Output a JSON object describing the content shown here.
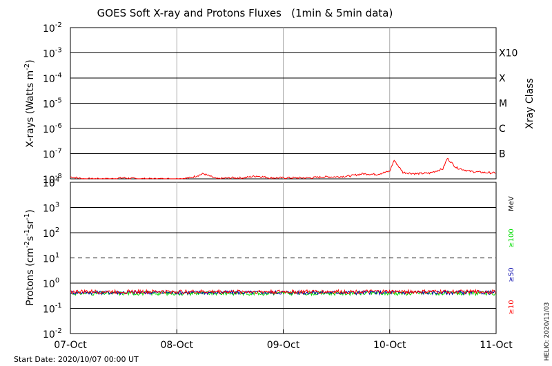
{
  "chart_data": [
    {
      "type": "line",
      "title": "GOES Soft X-ray and Protons Fluxes   (1min & 5min data)",
      "ylabel": "X-rays (Watts m^-2)",
      "ylabel_main": "X-rays (Watts m",
      "ylabel_exp": "-2",
      "ylabel_close": ")",
      "y_scale": "log",
      "ylim": [
        1e-08,
        0.01
      ],
      "y_ticks": [
        {
          "base": "10",
          "exp": "-2"
        },
        {
          "base": "10",
          "exp": "-3"
        },
        {
          "base": "10",
          "exp": "-4"
        },
        {
          "base": "10",
          "exp": "-5"
        },
        {
          "base": "10",
          "exp": "-6"
        },
        {
          "base": "10",
          "exp": "-7"
        },
        {
          "base": "10",
          "exp": "-8"
        }
      ],
      "right_axis_label": "Xray Class",
      "xray_classes": [
        {
          "label": "X10",
          "level": 0.001
        },
        {
          "label": "X",
          "level": 0.0001
        },
        {
          "label": "M",
          "level": 1e-05
        },
        {
          "label": "C",
          "level": 1e-06
        },
        {
          "label": "B",
          "level": 1e-07
        }
      ],
      "x_range_days": [
        "2020-10-07",
        "2020-10-11"
      ],
      "series": [
        {
          "color": "#ff0000",
          "x": [
            "2020-10-07 00:00",
            "2020-10-07 03:00",
            "2020-10-07 06:00",
            "2020-10-07 09:00",
            "2020-10-07 12:00",
            "2020-10-07 15:00",
            "2020-10-07 18:00",
            "2020-10-07 21:00",
            "2020-10-08 00:00",
            "2020-10-08 03:00",
            "2020-10-08 06:00",
            "2020-10-08 09:00",
            "2020-10-08 12:00",
            "2020-10-08 15:00",
            "2020-10-08 18:00",
            "2020-10-08 21:00",
            "2020-10-09 00:00",
            "2020-10-09 03:00",
            "2020-10-09 06:00",
            "2020-10-09 09:00",
            "2020-10-09 12:00",
            "2020-10-09 15:00",
            "2020-10-09 18:00",
            "2020-10-09 21:00",
            "2020-10-10 00:00",
            "2020-10-10 01:00",
            "2020-10-10 03:00",
            "2020-10-10 06:00",
            "2020-10-10 09:00",
            "2020-10-10 12:00",
            "2020-10-10 13:00",
            "2020-10-10 15:00",
            "2020-10-10 18:00",
            "2020-10-10 21:00",
            "2020-10-11 00:00"
          ],
          "y": [
            1.2e-08,
            1e-08,
            1e-08,
            1e-08,
            1.1e-08,
            1e-08,
            1e-08,
            1e-08,
            1e-08,
            1.1e-08,
            1.6e-08,
            1e-08,
            1.1e-08,
            1.1e-08,
            1.3e-08,
            1.1e-08,
            1.1e-08,
            1.1e-08,
            1.1e-08,
            1.2e-08,
            1.2e-08,
            1.3e-08,
            1.6e-08,
            1.5e-08,
            2e-08,
            5.5e-08,
            1.8e-08,
            1.6e-08,
            1.7e-08,
            2.5e-08,
            6.5e-08,
            2.8e-08,
            2e-08,
            1.8e-08,
            1.7e-08
          ]
        }
      ]
    },
    {
      "type": "line",
      "ylabel": "Protons (cm^-2 s^-1 sr^-1)",
      "y_scale": "log",
      "ylim": [
        0.01,
        10000
      ],
      "y_ticks": [
        {
          "base": "10",
          "exp": "4"
        },
        {
          "base": "10",
          "exp": "3"
        },
        {
          "base": "10",
          "exp": "2"
        },
        {
          "base": "10",
          "exp": "1"
        },
        {
          "base": "10",
          "exp": "0"
        },
        {
          "base": "10",
          "exp": "-1"
        },
        {
          "base": "10",
          "exp": "-2"
        }
      ],
      "threshold_line": 10,
      "units_label": "MeV",
      "x_range_days": [
        "2020-10-07",
        "2020-10-11"
      ],
      "series": [
        {
          "name": "≥10",
          "color": "#ff0000",
          "level": 0.46
        },
        {
          "name": "≥50",
          "color": "#0000aa",
          "level": 0.43
        },
        {
          "name": "≥100",
          "color": "#00dd00",
          "level": 0.4
        }
      ]
    }
  ],
  "x_axis": {
    "ticks": [
      "07-Oct",
      "08-Oct",
      "09-Oct",
      "10-Oct",
      "11-Oct"
    ]
  },
  "footer": {
    "start_date": "Start Date: 2020/10/07 00:00 UT",
    "stamp": "HELIO: 2020/11/03"
  },
  "labels": {
    "protons_main": "Protons (cm",
    "protons_e1": "-2",
    "protons_s": "s",
    "protons_e2": "-1",
    "protons_sr": "sr",
    "protons_e3": "-1",
    "protons_close": ")"
  }
}
